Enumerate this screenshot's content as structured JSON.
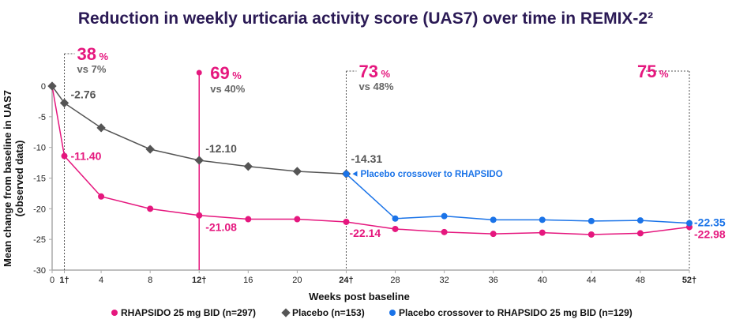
{
  "chart_data": {
    "type": "line",
    "title": "Reduction in weekly urticaria activity score (UAS7) over time in REMIX-2²",
    "xlabel": "Weeks post baseline",
    "ylabel": "Mean change from baseline in UAS7",
    "ylabel2": "(observed data)",
    "ylim": [
      -30,
      0
    ],
    "yticks": [
      0,
      -5,
      -10,
      -15,
      -20,
      -25,
      -30
    ],
    "xticks": [
      {
        "value": 0,
        "label": "0",
        "bold": false
      },
      {
        "value": 1,
        "label": "1†",
        "bold": true
      },
      {
        "value": 4,
        "label": "4",
        "bold": false
      },
      {
        "value": 8,
        "label": "8",
        "bold": false
      },
      {
        "value": 12,
        "label": "12†",
        "bold": true
      },
      {
        "value": 16,
        "label": "16",
        "bold": false
      },
      {
        "value": 20,
        "label": "20",
        "bold": false
      },
      {
        "value": 24,
        "label": "24†",
        "bold": true
      },
      {
        "value": 28,
        "label": "28",
        "bold": false
      },
      {
        "value": 32,
        "label": "32",
        "bold": false
      },
      {
        "value": 36,
        "label": "36",
        "bold": false
      },
      {
        "value": 40,
        "label": "40",
        "bold": false
      },
      {
        "value": 44,
        "label": "44",
        "bold": false
      },
      {
        "value": 48,
        "label": "48",
        "bold": false
      },
      {
        "value": 52,
        "label": "52†",
        "bold": true
      }
    ],
    "xlim": [
      0,
      52
    ],
    "grid": false,
    "legend_position": "bottom",
    "series": [
      {
        "name": "RHAPSIDO 25 mg BID (n=297)",
        "color": "#e5177e",
        "marker": "circle",
        "x": [
          0,
          1,
          4,
          8,
          12,
          16,
          20,
          24,
          28,
          32,
          36,
          40,
          44,
          48,
          52
        ],
        "y": [
          0,
          -11.4,
          -18.0,
          -20.0,
          -21.08,
          -21.7,
          -21.7,
          -22.14,
          -23.3,
          -23.8,
          -24.1,
          -23.9,
          -24.2,
          -24.0,
          -22.98
        ]
      },
      {
        "name": "Placebo (n=153)",
        "color": "#555555",
        "marker": "diamond",
        "x": [
          0,
          1,
          4,
          8,
          12,
          16,
          20,
          24
        ],
        "y": [
          0,
          -2.76,
          -6.8,
          -10.3,
          -12.1,
          -13.1,
          -13.9,
          -14.31
        ]
      },
      {
        "name": "Placebo crossover to RHAPSIDO 25 mg BID (n=129)",
        "color": "#1a73e8",
        "marker": "circle",
        "x": [
          24,
          28,
          32,
          36,
          40,
          44,
          48,
          52
        ],
        "y": [
          -14.31,
          -21.6,
          -21.2,
          -21.8,
          -21.8,
          -22.0,
          -21.9,
          -22.35
        ]
      }
    ],
    "data_labels": [
      {
        "series": 1,
        "x": 1,
        "text": "-2.76"
      },
      {
        "series": 0,
        "x": 1,
        "text": "-11.40"
      },
      {
        "series": 1,
        "x": 12,
        "text": "-12.10"
      },
      {
        "series": 0,
        "x": 12,
        "text": "-21.08"
      },
      {
        "series": 1,
        "x": 24,
        "text": "-14.31"
      },
      {
        "series": 0,
        "x": 24,
        "text": "-22.14"
      },
      {
        "series": 2,
        "x": 52,
        "text": "-22.35"
      },
      {
        "series": 0,
        "x": 52,
        "text": "-22.98"
      }
    ],
    "annotations": [
      {
        "week": 1,
        "value": "38",
        "unit": "%",
        "comparison": "vs 7%"
      },
      {
        "week": 12,
        "value": "69",
        "unit": "%",
        "comparison": "vs 40%"
      },
      {
        "week": 24,
        "value": "73",
        "unit": "%",
        "comparison": "vs 48%"
      },
      {
        "week": 52,
        "value": "75",
        "unit": "%",
        "comparison": ""
      }
    ],
    "crossover_note": "Placebo crossover to RHAPSIDO"
  }
}
